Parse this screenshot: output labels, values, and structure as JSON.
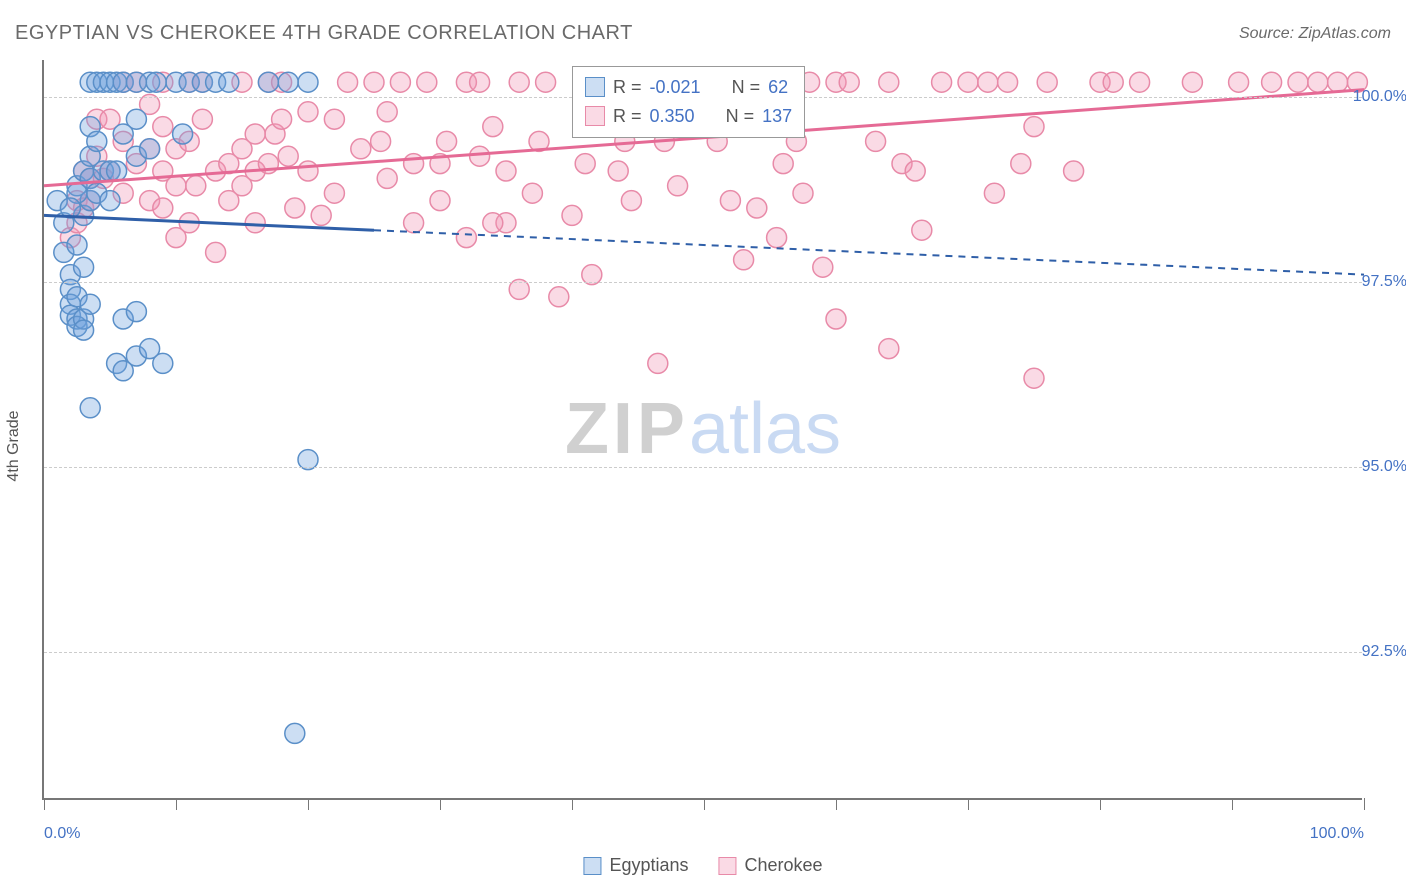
{
  "title": "EGYPTIAN VS CHEROKEE 4TH GRADE CORRELATION CHART",
  "source": "Source: ZipAtlas.com",
  "watermark_a": "ZIP",
  "watermark_b": "atlas",
  "y_axis_label": "4th Grade",
  "chart": {
    "type": "scatter",
    "xlim": [
      0,
      100
    ],
    "ylim": [
      90.5,
      100.5
    ],
    "xtick_positions": [
      0,
      10,
      20,
      30,
      40,
      50,
      60,
      70,
      80,
      90,
      100
    ],
    "xtick_labels": {
      "0": "0.0%",
      "100": "100.0%"
    },
    "ytick_positions": [
      92.5,
      95.0,
      97.5,
      100.0
    ],
    "ytick_labels": [
      "92.5%",
      "95.0%",
      "97.5%",
      "100.0%"
    ],
    "grid_color": "#cccccc",
    "background_color": "#ffffff",
    "axis_color": "#777777",
    "label_color": "#4472c4",
    "marker_radius": 10,
    "marker_stroke_width": 1.5,
    "line_width": 3,
    "series": {
      "egyptians": {
        "label": "Egyptians",
        "fill": "rgba(110,160,220,0.35)",
        "stroke": "#5a8fc8",
        "line_color": "#2f5fa8",
        "R": "-0.021",
        "N": "62",
        "trend": {
          "x1": 0,
          "y1": 98.4,
          "x2": 100,
          "y2": 97.6,
          "solid_until": 25
        },
        "points": [
          [
            1,
            98.6
          ],
          [
            1.5,
            98.3
          ],
          [
            1.5,
            97.9
          ],
          [
            2,
            97.6
          ],
          [
            2,
            97.4
          ],
          [
            2,
            97.2
          ],
          [
            2,
            97.05
          ],
          [
            2.5,
            98.8
          ],
          [
            2.5,
            98.0
          ],
          [
            2.5,
            97.3
          ],
          [
            2.5,
            97.0
          ],
          [
            2.5,
            96.9
          ],
          [
            3,
            99.0
          ],
          [
            3,
            98.4
          ],
          [
            3,
            97.7
          ],
          [
            3,
            97.0
          ],
          [
            3,
            96.85
          ],
          [
            3.5,
            100.2
          ],
          [
            3.5,
            99.6
          ],
          [
            3.5,
            99.2
          ],
          [
            3.5,
            98.9
          ],
          [
            3.5,
            98.6
          ],
          [
            3.5,
            97.2
          ],
          [
            4,
            100.2
          ],
          [
            4,
            99.4
          ],
          [
            4,
            98.7
          ],
          [
            4.5,
            100.2
          ],
          [
            4.5,
            99.0
          ],
          [
            5,
            100.2
          ],
          [
            5,
            99.0
          ],
          [
            5,
            98.6
          ],
          [
            5.5,
            100.2
          ],
          [
            5.5,
            99.0
          ],
          [
            5.5,
            96.4
          ],
          [
            6,
            100.2
          ],
          [
            6,
            99.5
          ],
          [
            6,
            97.0
          ],
          [
            6,
            96.3
          ],
          [
            7,
            100.2
          ],
          [
            7,
            99.7
          ],
          [
            7,
            99.2
          ],
          [
            7,
            97.1
          ],
          [
            7,
            96.5
          ],
          [
            8,
            100.2
          ],
          [
            8,
            99.3
          ],
          [
            8,
            96.6
          ],
          [
            8.5,
            100.2
          ],
          [
            9,
            96.4
          ],
          [
            10,
            100.2
          ],
          [
            10.5,
            99.5
          ],
          [
            11,
            100.2
          ],
          [
            12,
            100.2
          ],
          [
            13,
            100.2
          ],
          [
            14,
            100.2
          ],
          [
            17,
            100.2
          ],
          [
            18.5,
            100.2
          ],
          [
            19,
            91.4
          ],
          [
            20,
            100.2
          ],
          [
            20,
            95.1
          ],
          [
            3.5,
            95.8
          ],
          [
            2.5,
            98.7
          ],
          [
            2,
            98.5
          ]
        ]
      },
      "cherokee": {
        "label": "Cherokee",
        "fill": "rgba(240,150,180,0.35)",
        "stroke": "#e88aa8",
        "line_color": "#e56a95",
        "R": "0.350",
        "N": "137",
        "trend": {
          "x1": 0,
          "y1": 98.8,
          "x2": 100,
          "y2": 100.1,
          "solid_until": 100
        },
        "points": [
          [
            2,
            98.1
          ],
          [
            2.5,
            98.6
          ],
          [
            2.5,
            98.3
          ],
          [
            3,
            99.0
          ],
          [
            3,
            98.5
          ],
          [
            3.5,
            98.9
          ],
          [
            3.5,
            98.6
          ],
          [
            4,
            99.7
          ],
          [
            4,
            99.2
          ],
          [
            4.5,
            98.9
          ],
          [
            5,
            99.7
          ],
          [
            5,
            99.0
          ],
          [
            6,
            100.2
          ],
          [
            6,
            99.4
          ],
          [
            6,
            98.7
          ],
          [
            7,
            100.2
          ],
          [
            7,
            99.1
          ],
          [
            8,
            99.9
          ],
          [
            8,
            99.3
          ],
          [
            8,
            98.6
          ],
          [
            9,
            100.2
          ],
          [
            9,
            99.6
          ],
          [
            9,
            99.0
          ],
          [
            9,
            98.5
          ],
          [
            10,
            99.3
          ],
          [
            10,
            98.8
          ],
          [
            11,
            100.2
          ],
          [
            11,
            99.4
          ],
          [
            11.5,
            98.8
          ],
          [
            12,
            100.2
          ],
          [
            12,
            99.7
          ],
          [
            13,
            99.0
          ],
          [
            13,
            97.9
          ],
          [
            14,
            99.1
          ],
          [
            14,
            98.6
          ],
          [
            15,
            100.2
          ],
          [
            15,
            99.3
          ],
          [
            15,
            98.8
          ],
          [
            16,
            99.5
          ],
          [
            16,
            99.0
          ],
          [
            16,
            98.3
          ],
          [
            17,
            100.2
          ],
          [
            17,
            99.1
          ],
          [
            17.5,
            99.5
          ],
          [
            18,
            100.2
          ],
          [
            18,
            99.7
          ],
          [
            18.5,
            99.2
          ],
          [
            19,
            98.5
          ],
          [
            20,
            99.0
          ],
          [
            21,
            98.4
          ],
          [
            22,
            99.7
          ],
          [
            23,
            100.2
          ],
          [
            24,
            99.3
          ],
          [
            25,
            100.2
          ],
          [
            25.5,
            99.4
          ],
          [
            26,
            99.8
          ],
          [
            26,
            98.9
          ],
          [
            27,
            100.2
          ],
          [
            28,
            99.1
          ],
          [
            28,
            98.3
          ],
          [
            29,
            100.2
          ],
          [
            30,
            99.1
          ],
          [
            30,
            98.6
          ],
          [
            30.5,
            99.4
          ],
          [
            32,
            100.2
          ],
          [
            32,
            98.1
          ],
          [
            33,
            100.2
          ],
          [
            33,
            99.2
          ],
          [
            34,
            99.6
          ],
          [
            35,
            99.0
          ],
          [
            35,
            98.3
          ],
          [
            36,
            100.2
          ],
          [
            36,
            97.4
          ],
          [
            37,
            98.7
          ],
          [
            37.5,
            99.4
          ],
          [
            38,
            100.2
          ],
          [
            39,
            97.3
          ],
          [
            40,
            98.4
          ],
          [
            41,
            99.1
          ],
          [
            41.5,
            97.6
          ],
          [
            43,
            100.2
          ],
          [
            43.5,
            99.0
          ],
          [
            44,
            99.4
          ],
          [
            44.5,
            98.6
          ],
          [
            46,
            100.2
          ],
          [
            46.5,
            96.4
          ],
          [
            47,
            99.4
          ],
          [
            48,
            98.8
          ],
          [
            49,
            100.2
          ],
          [
            50,
            100.2
          ],
          [
            51,
            99.4
          ],
          [
            52,
            98.6
          ],
          [
            53,
            100.2
          ],
          [
            53,
            97.8
          ],
          [
            54,
            98.5
          ],
          [
            55,
            100.2
          ],
          [
            55.5,
            98.1
          ],
          [
            56,
            99.1
          ],
          [
            57,
            99.4
          ],
          [
            57.5,
            98.7
          ],
          [
            58,
            100.2
          ],
          [
            59,
            97.7
          ],
          [
            60,
            100.2
          ],
          [
            60,
            97.0
          ],
          [
            61,
            100.2
          ],
          [
            63,
            99.4
          ],
          [
            64,
            100.2
          ],
          [
            64,
            96.6
          ],
          [
            65,
            99.1
          ],
          [
            66,
            99.0
          ],
          [
            66.5,
            98.2
          ],
          [
            68,
            100.2
          ],
          [
            70,
            100.2
          ],
          [
            71.5,
            100.2
          ],
          [
            72,
            98.7
          ],
          [
            73,
            100.2
          ],
          [
            74,
            99.1
          ],
          [
            75,
            99.6
          ],
          [
            75,
            96.2
          ],
          [
            76,
            100.2
          ],
          [
            78,
            99.0
          ],
          [
            80,
            100.2
          ],
          [
            81,
            100.2
          ],
          [
            83,
            100.2
          ],
          [
            87,
            100.2
          ],
          [
            90.5,
            100.2
          ],
          [
            93,
            100.2
          ],
          [
            95,
            100.2
          ],
          [
            96.5,
            100.2
          ],
          [
            98,
            100.2
          ],
          [
            99.5,
            100.2
          ],
          [
            41,
            100.2
          ],
          [
            10,
            98.1
          ],
          [
            11,
            98.3
          ],
          [
            20,
            99.8
          ],
          [
            22,
            98.7
          ],
          [
            34,
            98.3
          ]
        ]
      }
    }
  },
  "stats_legend": {
    "r_label": "R =",
    "n_label": "N ="
  },
  "bottom_legend_labels": {
    "egyptians": "Egyptians",
    "cherokee": "Cherokee"
  }
}
